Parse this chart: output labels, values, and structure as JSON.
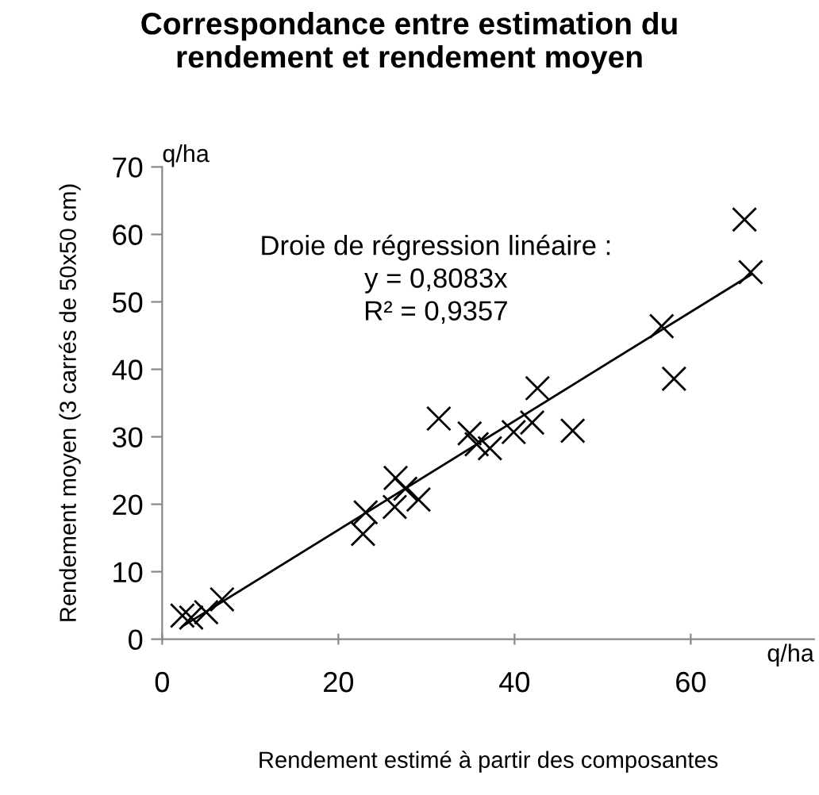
{
  "chart_data": {
    "type": "scatter",
    "title": "Correspondance entre estimation du\nrendement et rendement moyen",
    "xlabel": "Rendement estimé à partir des composantes",
    "ylabel": "Rendement moyen (3 carrés de 50x50 cm)",
    "annotations": [
      "q/ha",
      "q/ha",
      "Droie de régression linéaire :\ny = 0,8083x\nR² = 0,9357"
    ],
    "xlim": [
      0,
      74
    ],
    "ylim": [
      0,
      70
    ],
    "xticks": [
      0,
      20,
      40,
      60
    ],
    "yticks": [
      0,
      10,
      20,
      30,
      40,
      50,
      60,
      70
    ],
    "grid": false,
    "legend": false,
    "series": [
      {
        "marker": "cross",
        "color": "#000000",
        "x": [
          2.3,
          3.3,
          5.0,
          6.8,
          22.8,
          23.1,
          26.4,
          26.5,
          27.6,
          29.1,
          31.4,
          34.9,
          35.7,
          37.2,
          39.9,
          42.0,
          42.6,
          46.6,
          56.7,
          58.1,
          66.1,
          66.8
        ],
        "values": [
          3.5,
          3.2,
          4.0,
          5.9,
          15.6,
          18.8,
          19.6,
          23.9,
          22.3,
          20.7,
          32.7,
          30.5,
          28.9,
          28.3,
          30.7,
          32.1,
          37.2,
          30.9,
          46.4,
          38.6,
          62.2,
          54.4
        ]
      },
      {
        "type": "line",
        "marker": "none",
        "color": "#000000",
        "x": [
          2.3,
          66.8
        ],
        "values": [
          1.9,
          54.0
        ]
      }
    ]
  }
}
